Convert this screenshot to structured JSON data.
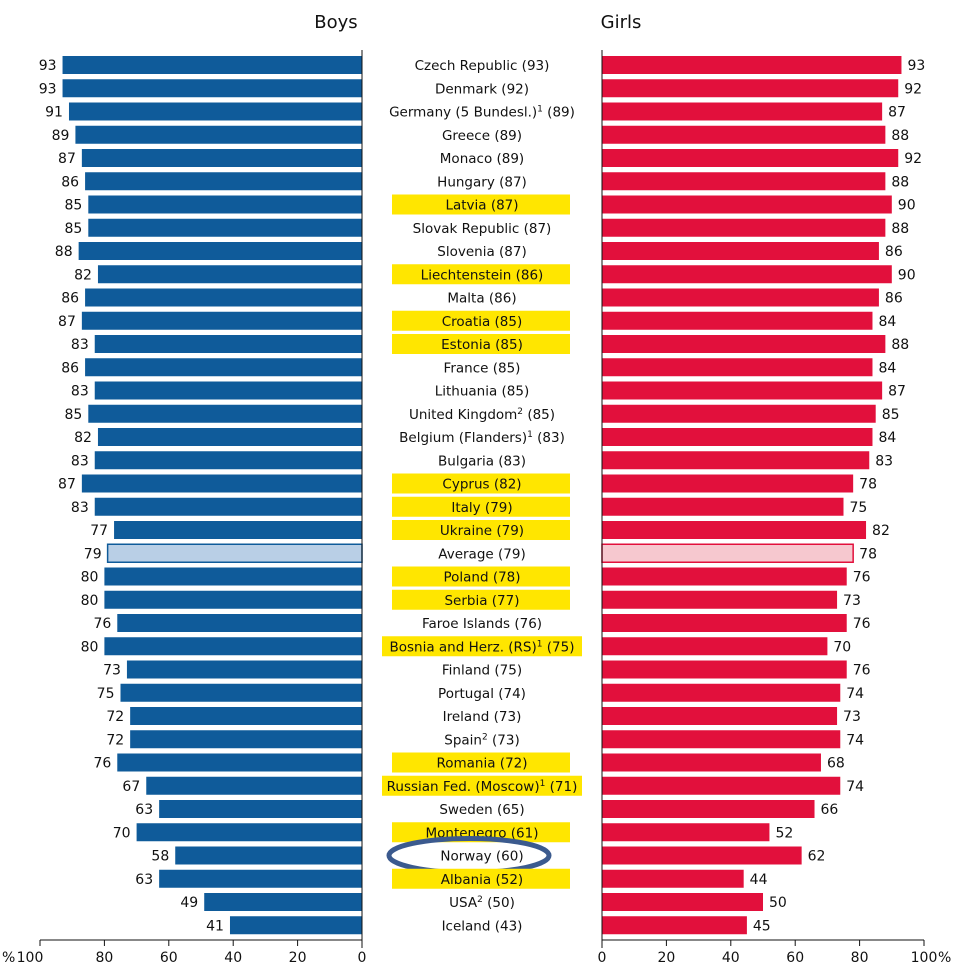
{
  "chart_data": {
    "type": "bar",
    "layout": "butterfly",
    "series": [
      {
        "name": "Boys",
        "color": "#0f5b9a",
        "average_color": "#b9cfe6"
      },
      {
        "name": "Girls",
        "color": "#e2103c",
        "average_color": "#f6c8cf"
      }
    ],
    "highlight_color": "#ffe600",
    "circle_color": "#3b5a8e",
    "rows": [
      {
        "label": "Czech Republic (93)",
        "boys": 93,
        "girls": 93,
        "highlight": false
      },
      {
        "label": "Denmark (92)",
        "boys": 93,
        "girls": 92,
        "highlight": false
      },
      {
        "label": "Germany (5 Bundesl.)",
        "sup": "1",
        "tail": " (89)",
        "boys": 91,
        "girls": 87,
        "highlight": false
      },
      {
        "label": "Greece (89)",
        "boys": 89,
        "girls": 88,
        "highlight": false
      },
      {
        "label": "Monaco (89)",
        "boys": 87,
        "girls": 92,
        "highlight": false
      },
      {
        "label": "Hungary (87)",
        "boys": 86,
        "girls": 88,
        "highlight": false
      },
      {
        "label": "Latvia (87)",
        "boys": 85,
        "girls": 90,
        "highlight": true
      },
      {
        "label": "Slovak Republic (87)",
        "boys": 85,
        "girls": 88,
        "highlight": false
      },
      {
        "label": "Slovenia (87)",
        "boys": 88,
        "girls": 86,
        "highlight": false
      },
      {
        "label": "Liechtenstein (86)",
        "boys": 82,
        "girls": 90,
        "highlight": true
      },
      {
        "label": "Malta (86)",
        "boys": 86,
        "girls": 86,
        "highlight": false
      },
      {
        "label": "Croatia (85)",
        "boys": 87,
        "girls": 84,
        "highlight": true
      },
      {
        "label": "Estonia (85)",
        "boys": 83,
        "girls": 88,
        "highlight": true
      },
      {
        "label": "France (85)",
        "boys": 86,
        "girls": 84,
        "highlight": false
      },
      {
        "label": "Lithuania (85)",
        "boys": 83,
        "girls": 87,
        "highlight": false
      },
      {
        "label": "United Kingdom",
        "sup": "2",
        "tail": " (85)",
        "boys": 85,
        "girls": 85,
        "highlight": false
      },
      {
        "label": "Belgium (Flanders)",
        "sup": "1",
        "tail": " (83)",
        "boys": 82,
        "girls": 84,
        "highlight": false
      },
      {
        "label": "Bulgaria (83)",
        "boys": 83,
        "girls": 83,
        "highlight": false
      },
      {
        "label": "Cyprus (82)",
        "boys": 87,
        "girls": 78,
        "highlight": true
      },
      {
        "label": "Italy (79)",
        "boys": 83,
        "girls": 75,
        "highlight": true
      },
      {
        "label": "Ukraine (79)",
        "boys": 77,
        "girls": 82,
        "highlight": true
      },
      {
        "label": "Average (79)",
        "boys": 79,
        "girls": 78,
        "highlight": false,
        "average": true
      },
      {
        "label": "Poland (78)",
        "boys": 80,
        "girls": 76,
        "highlight": true
      },
      {
        "label": "Serbia (77)",
        "boys": 80,
        "girls": 73,
        "highlight": true
      },
      {
        "label": "Faroe Islands (76)",
        "boys": 76,
        "girls": 76,
        "highlight": false
      },
      {
        "label": "Bosnia and Herz. (RS)",
        "sup": "1",
        "tail": " (75)",
        "boys": 80,
        "girls": 70,
        "highlight": true,
        "wide": true
      },
      {
        "label": "Finland (75)",
        "boys": 73,
        "girls": 76,
        "highlight": false
      },
      {
        "label": "Portugal (74)",
        "boys": 75,
        "girls": 74,
        "highlight": false
      },
      {
        "label": "Ireland (73)",
        "boys": 72,
        "girls": 73,
        "highlight": false
      },
      {
        "label": "Spain",
        "sup": "2",
        "tail": " (73)",
        "boys": 72,
        "girls": 74,
        "highlight": false
      },
      {
        "label": "Romania (72)",
        "boys": 76,
        "girls": 68,
        "highlight": true
      },
      {
        "label": "Russian Fed. (Moscow)",
        "sup": "1",
        "tail": " (71)",
        "boys": 67,
        "girls": 74,
        "highlight": true,
        "wide": true
      },
      {
        "label": "Sweden (65)",
        "boys": 63,
        "girls": 66,
        "highlight": false
      },
      {
        "label": "Montenegro (61)",
        "boys": 70,
        "girls": 52,
        "highlight": true
      },
      {
        "label": "Norway (60)",
        "boys": 58,
        "girls": 62,
        "highlight": false,
        "circled": true
      },
      {
        "label": "Albania (52)",
        "boys": 63,
        "girls": 44,
        "highlight": true
      },
      {
        "label": "USA",
        "sup": "2",
        "tail": " (50)",
        "boys": 49,
        "girls": 50,
        "highlight": false
      },
      {
        "label": "Iceland (43)",
        "boys": 41,
        "girls": 45,
        "highlight": false
      }
    ],
    "boys_axis": {
      "ticks": [
        100,
        80,
        60,
        40,
        20,
        0
      ],
      "prefix": "%"
    },
    "girls_axis": {
      "ticks": [
        0,
        20,
        40,
        60,
        80,
        100
      ],
      "suffix": "%"
    },
    "xlim": [
      0,
      100
    ]
  }
}
